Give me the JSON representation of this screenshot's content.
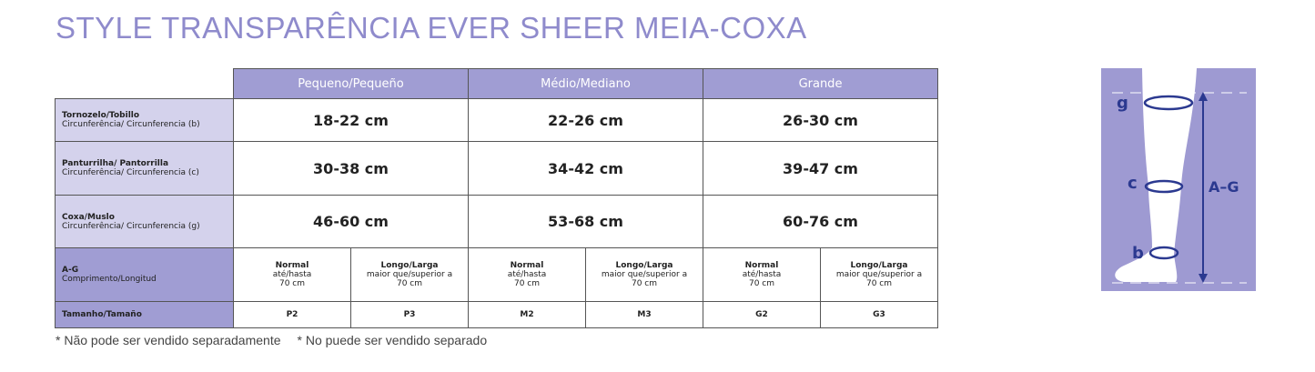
{
  "title": "STYLE TRANSPARÊNCIA EVER SHEER MEIA-COXA",
  "table": {
    "headers": [
      "Pequeno/Pequeño",
      "Médio/Mediano",
      "Grande"
    ],
    "rows": [
      {
        "label": "Tornozelo/Tobillo",
        "sublabel": "Circunferência/ Circunferencia (b)",
        "cells": [
          "18-22 cm",
          "22-26 cm",
          "26-30 cm"
        ]
      },
      {
        "label": "Panturrilha/ Pantorrilla",
        "sublabel": "Circunferência/ Circunferencia (c)",
        "cells": [
          "30-38 cm",
          "34-42 cm",
          "39-47 cm"
        ]
      },
      {
        "label": "Coxa/Muslo",
        "sublabel": "Circunferência/ Circunferencia (g)",
        "cells": [
          "46-60 cm",
          "53-68 cm",
          "60-76 cm"
        ]
      },
      {
        "label": "A-G",
        "sublabel": "Comprimento/Longitud",
        "cells": [
          {
            "title": "Normal",
            "lines": [
              "até/hasta",
              "70 cm"
            ]
          },
          {
            "title": "Longo/Larga",
            "lines": [
              "maior que/superior a",
              "70 cm"
            ]
          },
          {
            "title": "Normal",
            "lines": [
              "até/hasta",
              "70 cm"
            ]
          },
          {
            "title": "Longo/Larga",
            "lines": [
              "maior que/superior a",
              "70 cm"
            ]
          },
          {
            "title": "Normal",
            "lines": [
              "até/hasta",
              "70 cm"
            ]
          },
          {
            "title": "Longo/Larga",
            "lines": [
              "maior que/superior a",
              "70 cm"
            ]
          }
        ]
      },
      {
        "label": "Tamanho/Tamaño",
        "cells": [
          "P2",
          "P3",
          "M2",
          "M3",
          "G2",
          "G3"
        ]
      }
    ]
  },
  "footnotes": [
    "* Não pode ser vendido separadamente",
    "* No puede ser vendido separado"
  ],
  "diagram": {
    "labels": [
      "g",
      "c",
      "b",
      "A–G"
    ]
  }
}
